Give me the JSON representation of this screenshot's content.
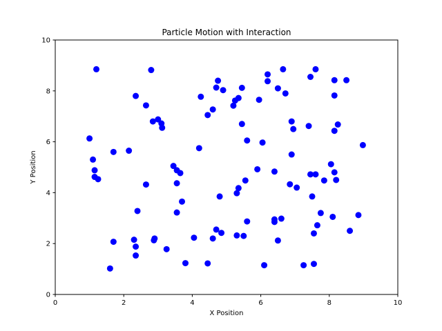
{
  "chart_data": {
    "type": "scatter",
    "title": "Particle Motion with Interaction",
    "xlabel": "X Position",
    "ylabel": "Y Position",
    "xlim": [
      0,
      10
    ],
    "ylim": [
      0,
      10
    ],
    "xticks": [
      "0",
      "2",
      "4",
      "6",
      "8",
      "10"
    ],
    "yticks": [
      "0",
      "2",
      "4",
      "6",
      "8",
      "10"
    ],
    "grid": false,
    "marker_color": "#0000ff",
    "points": [
      [
        1.2,
        8.85
      ],
      [
        2.8,
        8.82
      ],
      [
        6.65,
        8.85
      ],
      [
        7.6,
        8.85
      ],
      [
        6.2,
        8.65
      ],
      [
        7.45,
        8.55
      ],
      [
        4.75,
        8.4
      ],
      [
        6.2,
        8.38
      ],
      [
        8.15,
        8.42
      ],
      [
        8.5,
        8.42
      ],
      [
        4.7,
        8.13
      ],
      [
        4.9,
        8.03
      ],
      [
        5.45,
        8.12
      ],
      [
        6.5,
        8.1
      ],
      [
        6.72,
        7.9
      ],
      [
        2.35,
        7.8
      ],
      [
        4.25,
        7.77
      ],
      [
        5.35,
        7.72
      ],
      [
        5.25,
        7.62
      ],
      [
        5.95,
        7.65
      ],
      [
        8.15,
        7.82
      ],
      [
        2.65,
        7.43
      ],
      [
        5.2,
        7.42
      ],
      [
        4.6,
        7.27
      ],
      [
        4.45,
        7.05
      ],
      [
        3.0,
        6.88
      ],
      [
        2.85,
        6.8
      ],
      [
        3.1,
        6.72
      ],
      [
        3.12,
        6.55
      ],
      [
        5.45,
        6.7
      ],
      [
        6.9,
        6.8
      ],
      [
        7.4,
        6.62
      ],
      [
        8.25,
        6.68
      ],
      [
        6.95,
        6.5
      ],
      [
        8.15,
        6.43
      ],
      [
        1.0,
        6.13
      ],
      [
        5.6,
        6.05
      ],
      [
        6.05,
        5.97
      ],
      [
        8.98,
        5.87
      ],
      [
        4.2,
        5.75
      ],
      [
        2.15,
        5.65
      ],
      [
        1.7,
        5.6
      ],
      [
        6.9,
        5.5
      ],
      [
        1.1,
        5.3
      ],
      [
        8.05,
        5.12
      ],
      [
        3.45,
        5.05
      ],
      [
        1.15,
        4.88
      ],
      [
        3.55,
        4.88
      ],
      [
        3.65,
        4.77
      ],
      [
        5.9,
        4.92
      ],
      [
        6.4,
        4.83
      ],
      [
        7.45,
        4.72
      ],
      [
        7.6,
        4.72
      ],
      [
        8.15,
        4.8
      ],
      [
        1.15,
        4.62
      ],
      [
        1.25,
        4.53
      ],
      [
        5.55,
        4.48
      ],
      [
        7.85,
        4.48
      ],
      [
        8.2,
        4.5
      ],
      [
        3.55,
        4.37
      ],
      [
        2.65,
        4.32
      ],
      [
        6.85,
        4.33
      ],
      [
        7.05,
        4.2
      ],
      [
        5.35,
        4.18
      ],
      [
        5.3,
        3.98
      ],
      [
        4.8,
        3.85
      ],
      [
        7.5,
        3.85
      ],
      [
        3.7,
        3.65
      ],
      [
        2.4,
        3.28
      ],
      [
        3.55,
        3.22
      ],
      [
        7.75,
        3.2
      ],
      [
        8.85,
        3.12
      ],
      [
        8.1,
        3.05
      ],
      [
        6.6,
        2.98
      ],
      [
        6.4,
        2.95
      ],
      [
        6.4,
        2.85
      ],
      [
        5.6,
        2.87
      ],
      [
        7.65,
        2.72
      ],
      [
        4.7,
        2.55
      ],
      [
        8.6,
        2.5
      ],
      [
        4.85,
        2.42
      ],
      [
        7.55,
        2.4
      ],
      [
        5.3,
        2.32
      ],
      [
        5.5,
        2.3
      ],
      [
        4.05,
        2.23
      ],
      [
        4.6,
        2.2
      ],
      [
        2.9,
        2.2
      ],
      [
        2.3,
        2.15
      ],
      [
        2.88,
        2.13
      ],
      [
        6.5,
        2.12
      ],
      [
        1.7,
        2.07
      ],
      [
        2.35,
        1.88
      ],
      [
        3.25,
        1.78
      ],
      [
        2.35,
        1.53
      ],
      [
        3.8,
        1.23
      ],
      [
        4.45,
        1.22
      ],
      [
        6.1,
        1.15
      ],
      [
        7.25,
        1.15
      ],
      [
        7.55,
        1.2
      ],
      [
        1.6,
        1.02
      ]
    ]
  }
}
